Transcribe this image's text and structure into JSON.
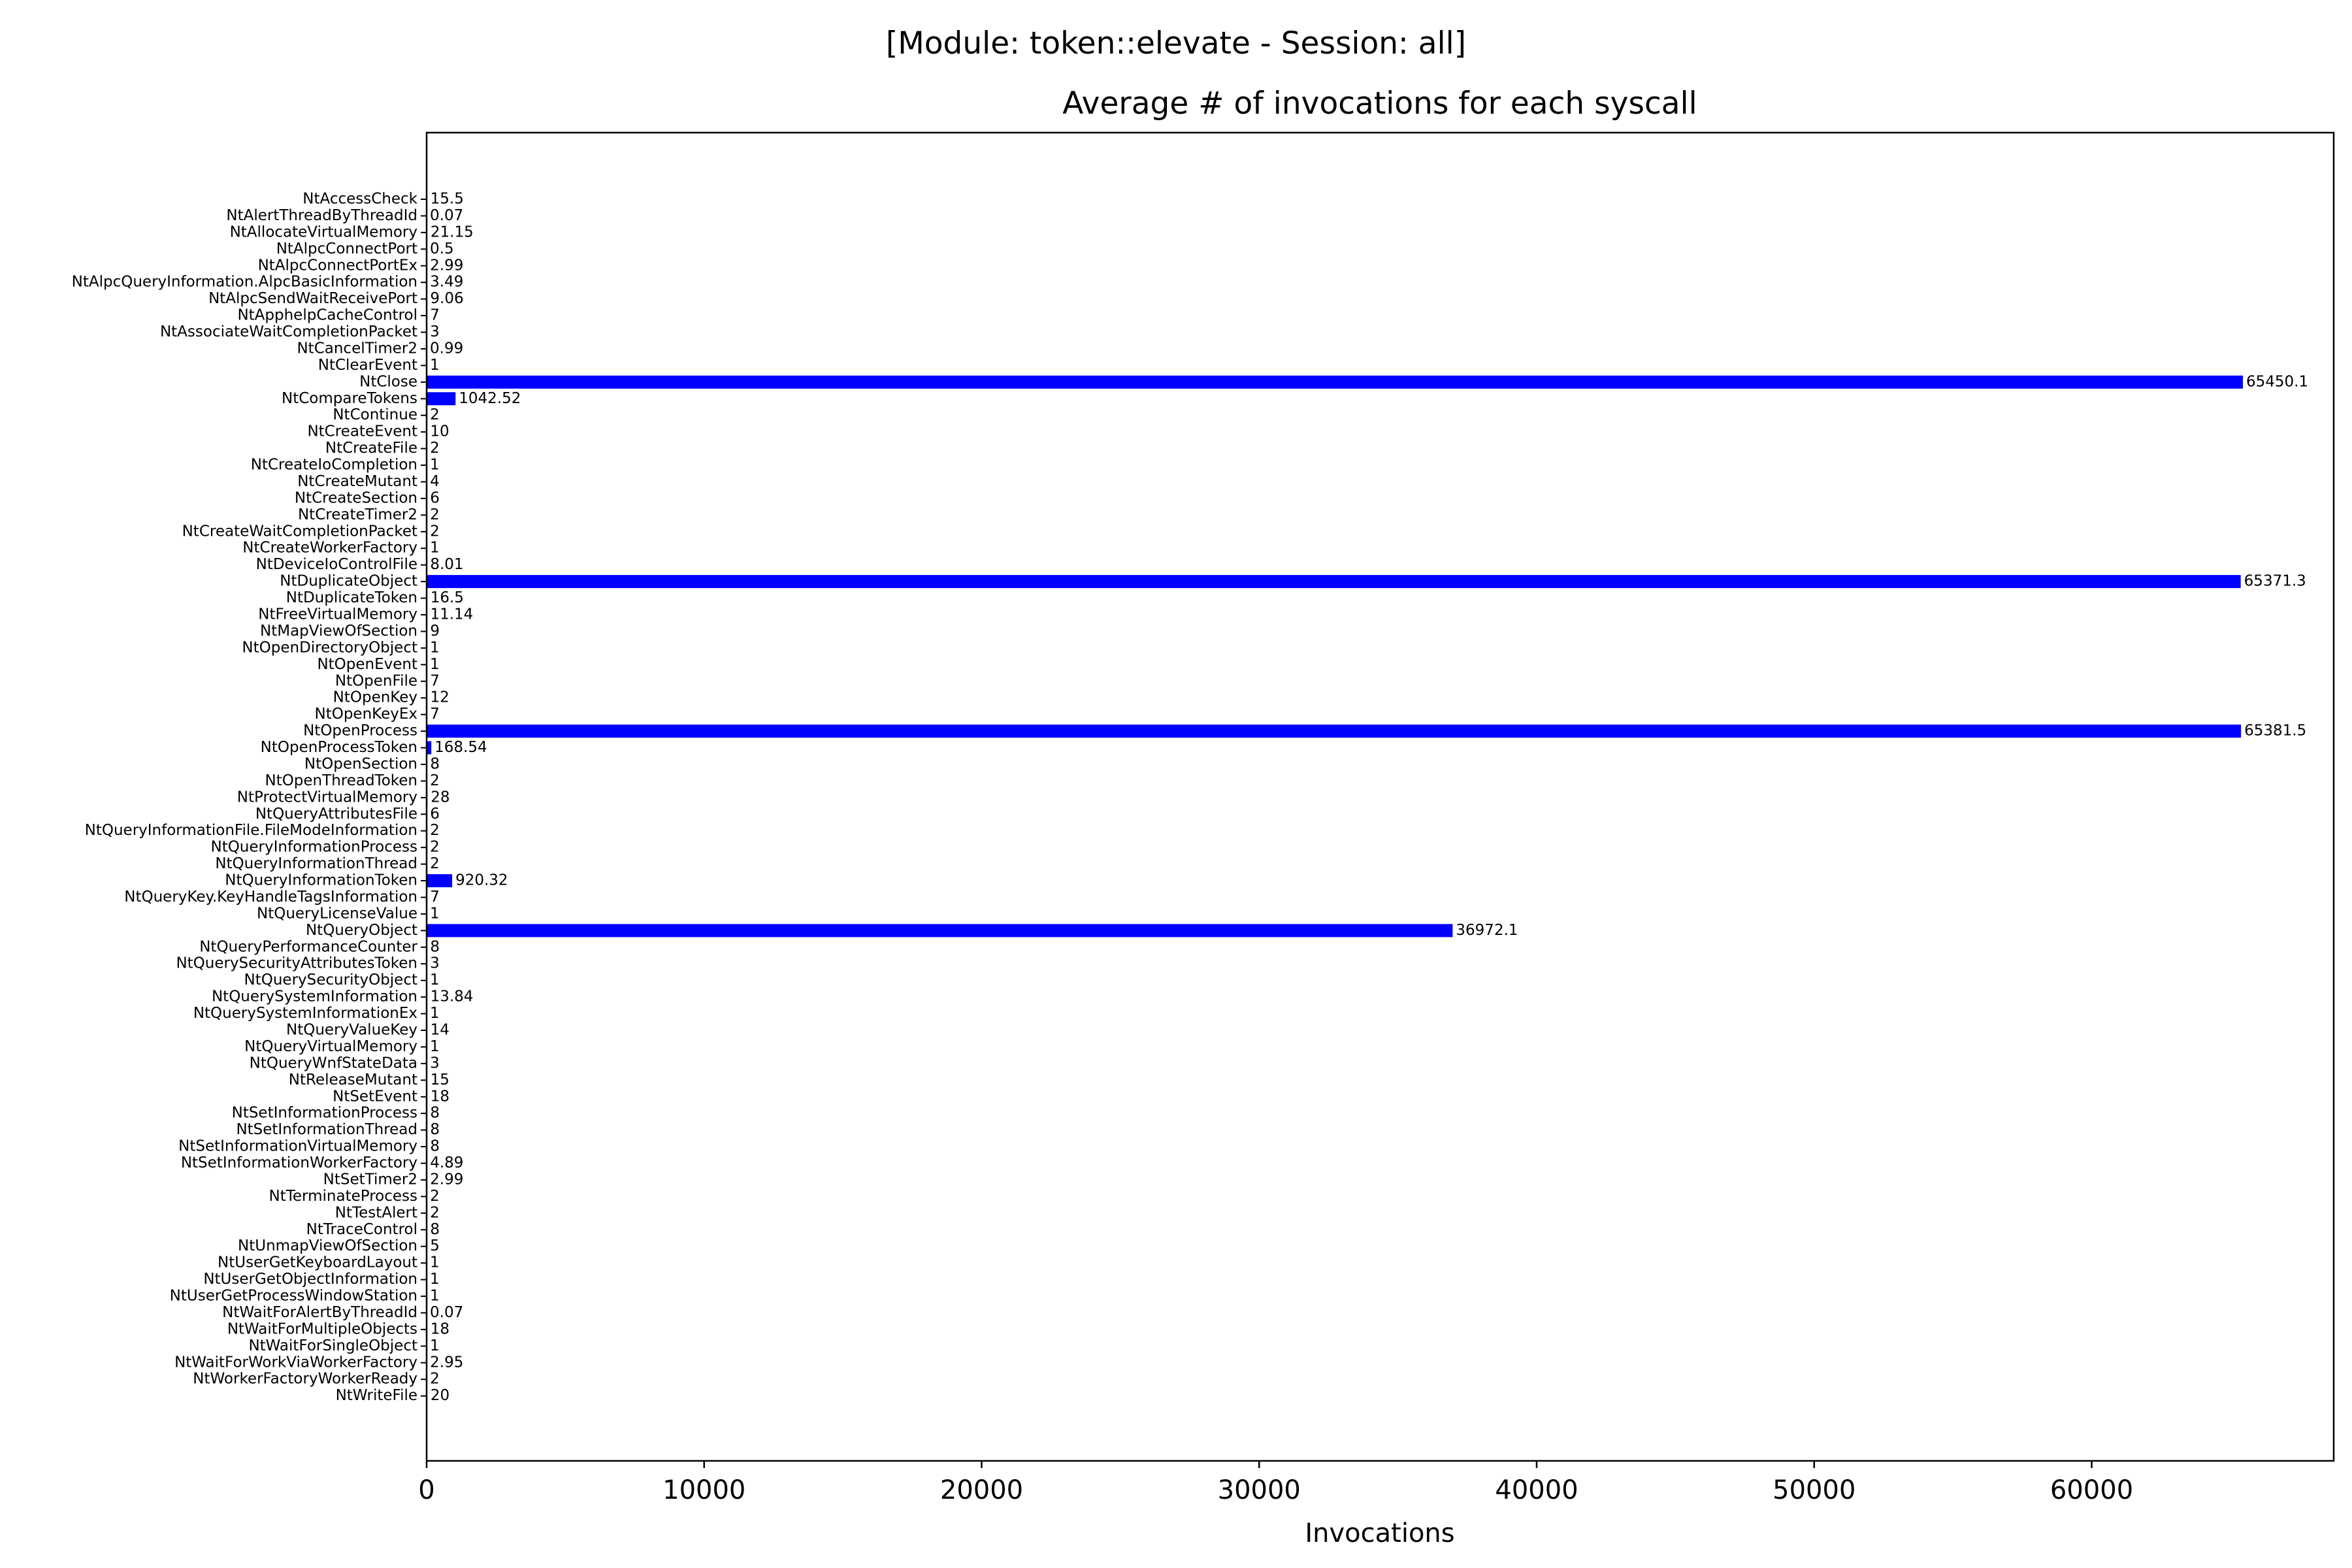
{
  "chart_data": {
    "type": "bar",
    "orientation": "horizontal",
    "suptitle": "[Module: token::elevate - Session: all]",
    "title": "Average # of invocations for each syscall",
    "xlabel": "Invocations",
    "ylabel": "",
    "xlim": [
      0,
      68722
    ],
    "xticks": [
      0,
      10000,
      20000,
      30000,
      40000,
      50000,
      60000
    ],
    "grid": false,
    "bar_color": "#0000ff",
    "categories": [
      "NtAccessCheck",
      "NtAlertThreadByThreadId",
      "NtAllocateVirtualMemory",
      "NtAlpcConnectPort",
      "NtAlpcConnectPortEx",
      "NtAlpcQueryInformation.AlpcBasicInformation",
      "NtAlpcSendWaitReceivePort",
      "NtApphelpCacheControl",
      "NtAssociateWaitCompletionPacket",
      "NtCancelTimer2",
      "NtClearEvent",
      "NtClose",
      "NtCompareTokens",
      "NtContinue",
      "NtCreateEvent",
      "NtCreateFile",
      "NtCreateIoCompletion",
      "NtCreateMutant",
      "NtCreateSection",
      "NtCreateTimer2",
      "NtCreateWaitCompletionPacket",
      "NtCreateWorkerFactory",
      "NtDeviceIoControlFile",
      "NtDuplicateObject",
      "NtDuplicateToken",
      "NtFreeVirtualMemory",
      "NtMapViewOfSection",
      "NtOpenDirectoryObject",
      "NtOpenEvent",
      "NtOpenFile",
      "NtOpenKey",
      "NtOpenKeyEx",
      "NtOpenProcess",
      "NtOpenProcessToken",
      "NtOpenSection",
      "NtOpenThreadToken",
      "NtProtectVirtualMemory",
      "NtQueryAttributesFile",
      "NtQueryInformationFile.FileModeInformation",
      "NtQueryInformationProcess",
      "NtQueryInformationThread",
      "NtQueryInformationToken",
      "NtQueryKey.KeyHandleTagsInformation",
      "NtQueryLicenseValue",
      "NtQueryObject",
      "NtQueryPerformanceCounter",
      "NtQuerySecurityAttributesToken",
      "NtQuerySecurityObject",
      "NtQuerySystemInformation",
      "NtQuerySystemInformationEx",
      "NtQueryValueKey",
      "NtQueryVirtualMemory",
      "NtQueryWnfStateData",
      "NtReleaseMutant",
      "NtSetEvent",
      "NtSetInformationProcess",
      "NtSetInformationThread",
      "NtSetInformationVirtualMemory",
      "NtSetInformationWorkerFactory",
      "NtSetTimer2",
      "NtTerminateProcess",
      "NtTestAlert",
      "NtTraceControl",
      "NtUnmapViewOfSection",
      "NtUserGetKeyboardLayout",
      "NtUserGetObjectInformation",
      "NtUserGetProcessWindowStation",
      "NtWaitForAlertByThreadId",
      "NtWaitForMultipleObjects",
      "NtWaitForSingleObject",
      "NtWaitForWorkViaWorkerFactory",
      "NtWorkerFactoryWorkerReady",
      "NtWriteFile"
    ],
    "values": [
      15.5,
      0.07,
      21.15,
      0.5,
      2.99,
      3.49,
      9.06,
      7,
      3,
      0.99,
      1,
      65450.1,
      1042.52,
      2,
      10,
      2,
      1,
      4,
      6,
      2,
      2,
      1,
      8.01,
      65371.3,
      16.5,
      11.14,
      9,
      1,
      1,
      7,
      12,
      7,
      65381.5,
      168.54,
      8,
      2,
      28,
      6,
      2,
      2,
      2,
      920.32,
      7,
      1,
      36972.1,
      8,
      3,
      1,
      13.84,
      1,
      14,
      1,
      3,
      15,
      18,
      8,
      8,
      8,
      4.89,
      2.99,
      2,
      2,
      8,
      5,
      1,
      1,
      1,
      0.07,
      18,
      1,
      2.95,
      2,
      20
    ],
    "value_labels": [
      "15.5",
      "0.07",
      "21.15",
      "0.5",
      "2.99",
      "3.49",
      "9.06",
      "7",
      "3",
      "0.99",
      "1",
      "65450.1",
      "1042.52",
      "2",
      "10",
      "2",
      "1",
      "4",
      "6",
      "2",
      "2",
      "1",
      "8.01",
      "65371.3",
      "16.5",
      "11.14",
      "9",
      "1",
      "1",
      "7",
      "12",
      "7",
      "65381.5",
      "168.54",
      "8",
      "2",
      "28",
      "6",
      "2",
      "2",
      "2",
      "920.32",
      "7",
      "1",
      "36972.1",
      "8",
      "3",
      "1",
      "13.84",
      "1",
      "14",
      "1",
      "3",
      "15",
      "18",
      "8",
      "8",
      "8",
      "4.89",
      "2.99",
      "2",
      "2",
      "8",
      "5",
      "1",
      "1",
      "1",
      "0.07",
      "18",
      "1",
      "2.95",
      "2",
      "20"
    ]
  }
}
